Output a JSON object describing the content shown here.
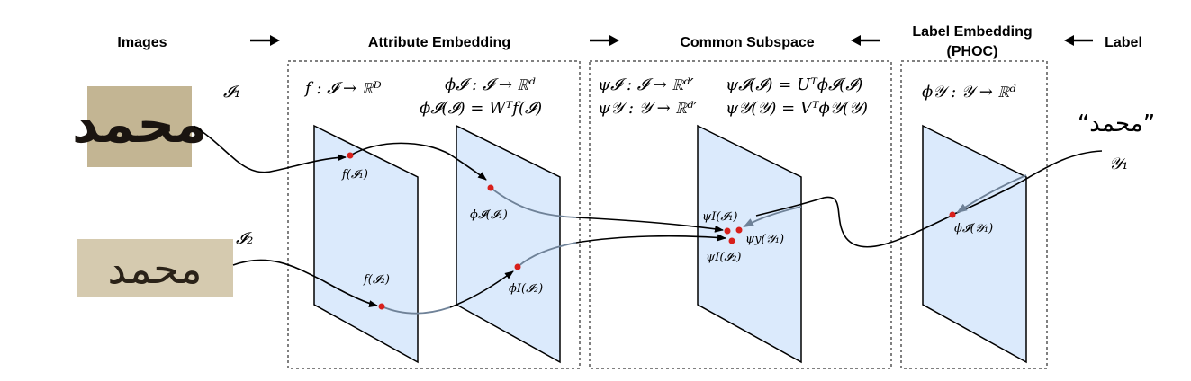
{
  "headers": {
    "images": "Images",
    "attribute_embedding": "Attribute Embedding",
    "common_subspace": "Common Subspace",
    "label_embedding_line1": "Label Embedding",
    "label_embedding_line2": "(PHOC)",
    "label": "Label"
  },
  "image_labels": {
    "i1": "𝓘₁",
    "i2": "𝓘₂",
    "word_sample_1": "محمد",
    "word_sample_2": "محمد"
  },
  "label_side": {
    "word": "“محمد”",
    "y1": "𝒴₁"
  },
  "equations": {
    "attr_f": "f : 𝓘 → ℝᴰ",
    "attr_phi_map": "ϕ𝓘 : 𝓘 → ℝᵈ",
    "attr_phi_def": "ϕ𝓘(𝓘) = Wᵀf(𝓘)",
    "common_psi_i_map": "ψ𝓘 : 𝓘 → ℝᵈ′",
    "common_psi_i_def": "ψ𝓘(𝓘) = Uᵀϕ𝓘(𝓘)",
    "common_psi_y_map": "ψ𝒴 : 𝒴 → ℝᵈ′",
    "common_psi_y_def": "ψ𝒴(𝒴) = Vᵀϕ𝒴(𝒴)",
    "label_phi_map": "ϕ𝒴 : 𝒴 → ℝᵈ"
  },
  "point_labels": {
    "f_i1": "f(𝓘₁)",
    "f_i2": "f(𝓘₂)",
    "phi_i1": "ϕ𝓘(𝓘₁)",
    "phi_i2": "ϕI(𝓘₂)",
    "psi_i1": "ψI(𝓘₁)",
    "psi_i2": "ψI(𝓘₂)",
    "psi_y1": "ψy(𝒴₁)",
    "phi_y1": "ϕ𝓘(𝒴₁)"
  },
  "colors": {
    "plane_fill": "#dbeafc",
    "point": "#d8201c",
    "label_arrow": "#6f8298"
  }
}
